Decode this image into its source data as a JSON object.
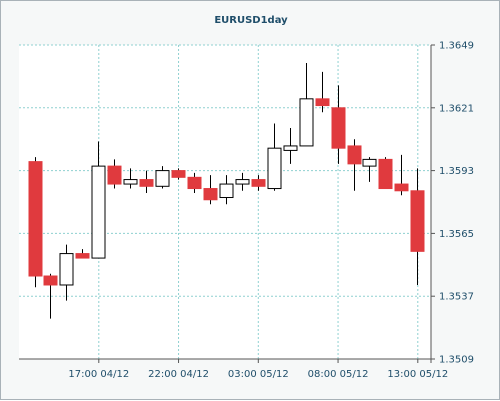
{
  "chart_data": {
    "type": "candlestick",
    "title": "EURUSD1day",
    "ylim": [
      1.3509,
      1.3649
    ],
    "y_ticks": [
      "1.3649",
      "1.3621",
      "1.3593",
      "1.3565",
      "1.3537",
      "1.3509"
    ],
    "x_ticks": [
      {
        "label": "17:00 04/12",
        "index": 4
      },
      {
        "label": "22:00 04/12",
        "index": 9
      },
      {
        "label": "03:00 05/12",
        "index": 14
      },
      {
        "label": "08:00 05/12",
        "index": 19
      },
      {
        "label": "13:00 05/12",
        "index": 24
      }
    ],
    "grid": true,
    "colors": {
      "bull_fill": "#ffffff",
      "bear_fill": "#e03a3e",
      "outline": "#000000",
      "grid": "#8fd0d0",
      "plot_bg": "#ffffff",
      "axis_text": "#1f4e6a"
    },
    "candles": [
      {
        "open": 1.3597,
        "high": 1.3599,
        "low": 1.3541,
        "close": 1.3546
      },
      {
        "open": 1.3546,
        "high": 1.3547,
        "low": 1.3527,
        "close": 1.3542
      },
      {
        "open": 1.3542,
        "high": 1.356,
        "low": 1.3535,
        "close": 1.3556
      },
      {
        "open": 1.3556,
        "high": 1.3558,
        "low": 1.3554,
        "close": 1.3554
      },
      {
        "open": 1.3554,
        "high": 1.3606,
        "low": 1.3554,
        "close": 1.3595
      },
      {
        "open": 1.3595,
        "high": 1.3598,
        "low": 1.3585,
        "close": 1.3587
      },
      {
        "open": 1.3587,
        "high": 1.3594,
        "low": 1.3585,
        "close": 1.3589
      },
      {
        "open": 1.3589,
        "high": 1.3593,
        "low": 1.3583,
        "close": 1.3586
      },
      {
        "open": 1.3586,
        "high": 1.3595,
        "low": 1.3585,
        "close": 1.3593
      },
      {
        "open": 1.3593,
        "high": 1.3594,
        "low": 1.3589,
        "close": 1.359
      },
      {
        "open": 1.359,
        "high": 1.3592,
        "low": 1.3583,
        "close": 1.3585
      },
      {
        "open": 1.3585,
        "high": 1.3591,
        "low": 1.3578,
        "close": 1.358
      },
      {
        "open": 1.3581,
        "high": 1.3591,
        "low": 1.3578,
        "close": 1.3587
      },
      {
        "open": 1.3587,
        "high": 1.3592,
        "low": 1.3584,
        "close": 1.3589
      },
      {
        "open": 1.3589,
        "high": 1.3591,
        "low": 1.3584,
        "close": 1.3586
      },
      {
        "open": 1.3585,
        "high": 1.3614,
        "low": 1.3584,
        "close": 1.3603
      },
      {
        "open": 1.3602,
        "high": 1.3612,
        "low": 1.3596,
        "close": 1.3604
      },
      {
        "open": 1.3604,
        "high": 1.3641,
        "low": 1.3604,
        "close": 1.3625
      },
      {
        "open": 1.3625,
        "high": 1.3637,
        "low": 1.3619,
        "close": 1.3622
      },
      {
        "open": 1.3621,
        "high": 1.3631,
        "low": 1.3596,
        "close": 1.3603
      },
      {
        "open": 1.3604,
        "high": 1.3607,
        "low": 1.3584,
        "close": 1.3596
      },
      {
        "open": 1.3595,
        "high": 1.3599,
        "low": 1.3588,
        "close": 1.3598
      },
      {
        "open": 1.3598,
        "high": 1.3599,
        "low": 1.3585,
        "close": 1.3585
      },
      {
        "open": 1.3587,
        "high": 1.36,
        "low": 1.3582,
        "close": 1.3584
      },
      {
        "open": 1.3584,
        "high": 1.3594,
        "low": 1.3542,
        "close": 1.3557
      }
    ]
  }
}
